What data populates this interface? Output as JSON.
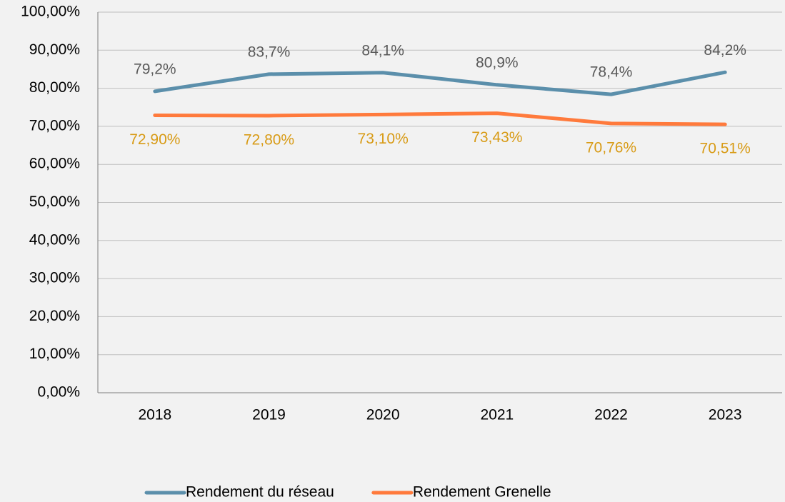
{
  "chart_data": {
    "type": "line",
    "categories": [
      "2018",
      "2019",
      "2020",
      "2021",
      "2022",
      "2023"
    ],
    "series": [
      {
        "name": "Rendement du réseau",
        "color": "#5b8fab",
        "label_color": "#595959",
        "values": [
          79.2,
          83.7,
          84.1,
          80.9,
          78.4,
          84.2
        ],
        "value_labels": [
          "79,2%",
          "83,7%",
          "84,1%",
          "80,9%",
          "78,4%",
          "84,2%"
        ]
      },
      {
        "name": "Rendement Grenelle",
        "color": "#ff7a3c",
        "label_color": "#d89b16",
        "values": [
          72.9,
          72.8,
          73.1,
          73.43,
          70.76,
          70.51
        ],
        "value_labels": [
          "72,90%",
          "72,80%",
          "73,10%",
          "73,43%",
          "70,76%",
          "70,51%"
        ]
      }
    ],
    "ylim": [
      0,
      100
    ],
    "yticks": [
      {
        "value": 0,
        "label": "0,00%"
      },
      {
        "value": 10,
        "label": "10,00%"
      },
      {
        "value": 20,
        "label": "20,00%"
      },
      {
        "value": 30,
        "label": "30,00%"
      },
      {
        "value": 40,
        "label": "40,00%"
      },
      {
        "value": 50,
        "label": "50,00%"
      },
      {
        "value": 60,
        "label": "60,00%"
      },
      {
        "value": 70,
        "label": "70,00%"
      },
      {
        "value": 80,
        "label": "80,00%"
      },
      {
        "value": 90,
        "label": "90,00%"
      },
      {
        "value": 100,
        "label": "100,00%"
      }
    ],
    "grid": true,
    "legend": "bottom"
  }
}
